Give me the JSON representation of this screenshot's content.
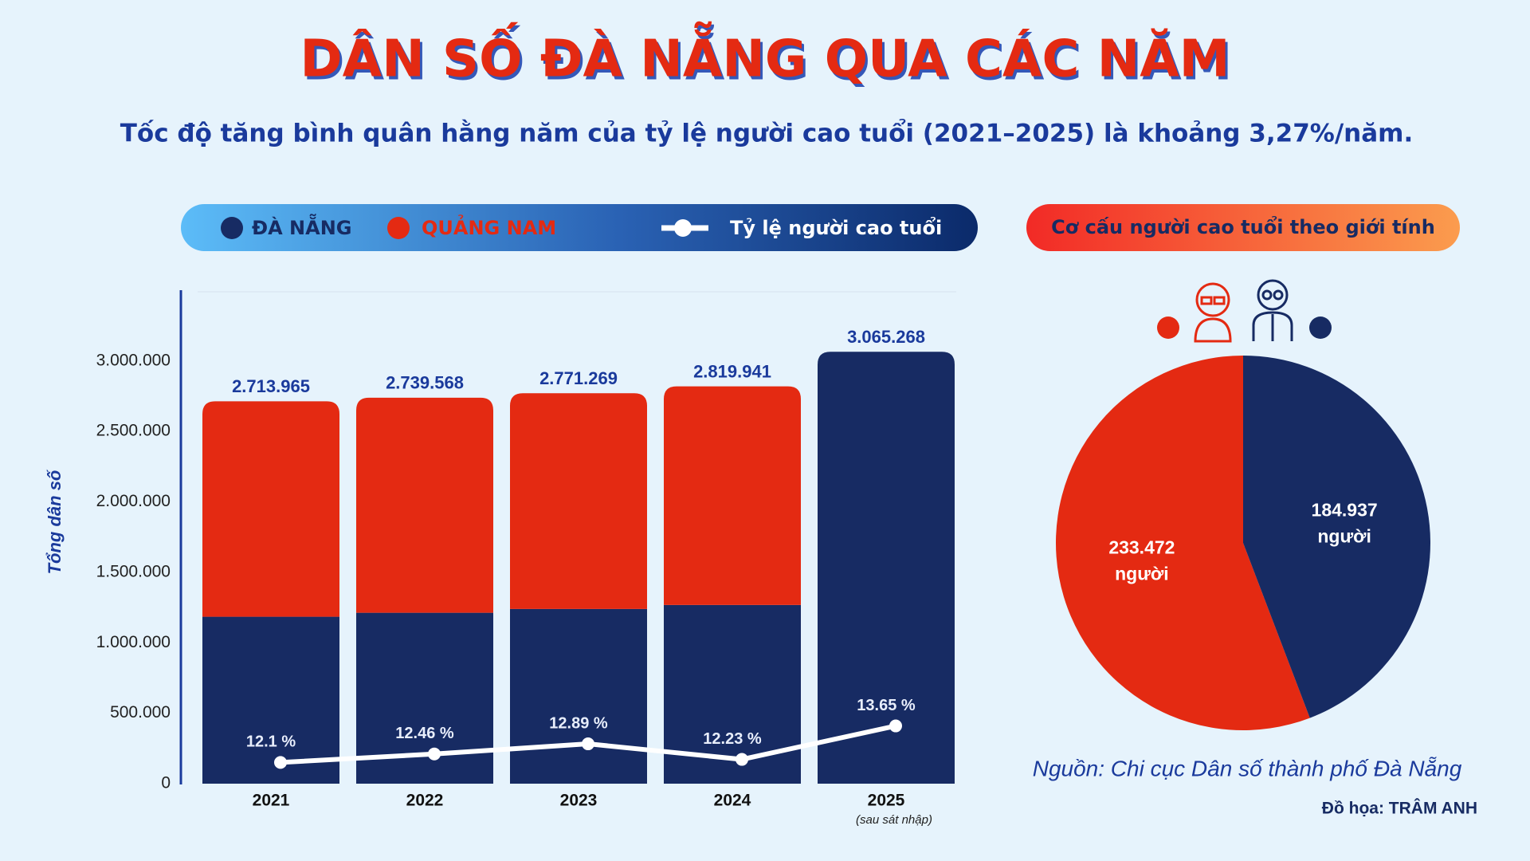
{
  "header": {
    "title": "DÂN SỐ ĐÀ NẴNG QUA CÁC NĂM",
    "subtitle": "Tốc độ tăng bình quân hằng năm của tỷ lệ người cao tuổi (2021–2025) là khoảng 3,27%/năm."
  },
  "chart_data": [
    {
      "type": "bar",
      "stacked": true,
      "y_label": "Tổng dân số",
      "categories": [
        "2021",
        "2022",
        "2023",
        "2024",
        "2025"
      ],
      "category_notes": [
        null,
        null,
        null,
        null,
        "(sau sát nhập)"
      ],
      "series": [
        {
          "name": "ĐÀ NẴNG",
          "color": "#172b63",
          "values": [
            1185000,
            1213000,
            1240000,
            1268000,
            3065268
          ]
        },
        {
          "name": "QUẢNG NAM",
          "color": "#e42a12",
          "values": [
            1528965,
            1526568,
            1531269,
            1551941,
            null
          ]
        },
        {
          "name": "Tỷ lệ người cao tuổi",
          "type": "line",
          "axis": "y2",
          "color": "#ffffff",
          "values": [
            12.1,
            12.46,
            12.89,
            12.23,
            13.65
          ],
          "value_labels": [
            "12.1 %",
            "12.46 %",
            "12.89 %",
            "12.23 %",
            "13.65 %"
          ]
        }
      ],
      "total_values": [
        2713965,
        2739568,
        2771269,
        2819941,
        3065268
      ],
      "total_labels": [
        "2.713.965",
        "2.739.568",
        "2.771.269",
        "2.819.941",
        "3.065.268"
      ],
      "ylim": [
        0,
        3480000
      ],
      "yticks": [
        0,
        {
          "value": 500000,
          "label": "500.000"
        },
        {
          "value": 1000000,
          "label": "1.000.000"
        },
        {
          "value": 1500000,
          "label": "1.500.000"
        },
        {
          "value": 2000000,
          "label": "2.000.000"
        },
        {
          "value": 2500000,
          "label": "2.500.000"
        },
        {
          "value": 3000000,
          "label": "3.000.000"
        }
      ],
      "y2lim": [
        11.2,
        32
      ]
    },
    {
      "type": "pie",
      "title": "Cơ cấu người cao tuổi theo giới tính",
      "values": [
        233472,
        184937
      ],
      "colors": [
        "#e42a12",
        "#172b63"
      ],
      "value_labels": [
        "233.472",
        "184.937"
      ],
      "unit_label": "người"
    }
  ],
  "footer": {
    "source": "Nguồn: Chi cục Dân số thành phố Đà Nẵng",
    "credit": "Đồ họa: TRÂM ANH"
  }
}
